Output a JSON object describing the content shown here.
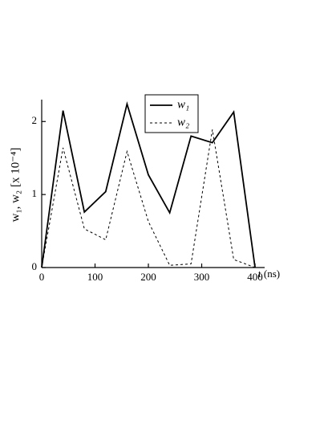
{
  "chart_data": {
    "type": "line",
    "x": [
      0,
      40,
      80,
      120,
      160,
      200,
      240,
      280,
      320,
      360,
      400
    ],
    "series": [
      {
        "name": "w₁",
        "color": "#000000",
        "dash": "solid",
        "values": [
          0,
          2.15,
          0.76,
          1.04,
          2.24,
          1.27,
          0.75,
          1.8,
          1.71,
          2.13,
          0
        ]
      },
      {
        "name": "w₂",
        "color": "#000000",
        "dash": "dashed",
        "values": [
          0,
          1.64,
          0.53,
          0.38,
          1.59,
          0.63,
          0.03,
          0.05,
          1.89,
          0.11,
          0
        ]
      }
    ],
    "xlabel": "t (ns)",
    "ylabel": "w₁, w₂ [x 10⁻⁴]",
    "xlim": [
      0,
      418
    ],
    "ylim": [
      0,
      2.3
    ],
    "xticks": [
      0,
      100,
      200,
      300,
      400
    ],
    "yticks": [
      0,
      1,
      2
    ],
    "legend": "top-center"
  }
}
